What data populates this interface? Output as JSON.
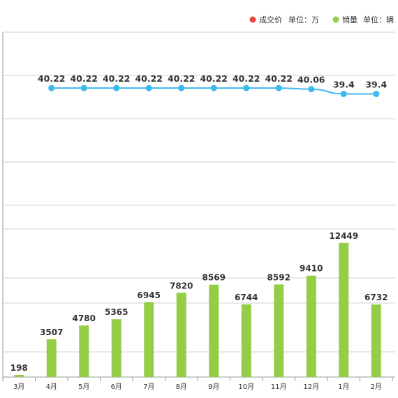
{
  "chart_data": {
    "type": "bar+line",
    "categories": [
      "3月",
      "4月",
      "5月",
      "6月",
      "7月",
      "8月",
      "9月",
      "10月",
      "11月",
      "12月",
      "1月",
      "2月"
    ],
    "series": [
      {
        "name": "成交价",
        "type": "line",
        "unit": "单位：万",
        "color": "#3db8ed",
        "values": [
          null,
          40.22,
          40.22,
          40.22,
          40.22,
          40.22,
          40.22,
          40.22,
          40.22,
          40.06,
          39.4,
          39.4
        ],
        "labels": [
          "",
          "40.22",
          "40.22",
          "40.22",
          "40.22",
          "40.22",
          "40.22",
          "40.22",
          "40.22",
          "40.06",
          "39.4",
          "39.4"
        ]
      },
      {
        "name": "销量",
        "type": "bar",
        "unit": "单位：辆",
        "color": "#95cd47",
        "values": [
          198,
          3507,
          4780,
          5365,
          6945,
          7820,
          8569,
          6744,
          8592,
          9410,
          12449,
          6732
        ]
      }
    ],
    "legend": {
      "placement": "top-right",
      "items": [
        {
          "dot_color": "#e8463f",
          "label": "成交价",
          "unit": "单位：万"
        },
        {
          "dot_color": "#95cd47",
          "label": "销量",
          "unit": "单位：辆"
        }
      ]
    },
    "bar_ylim": [
      0,
      32000
    ],
    "line_ylim": [
      0,
      48
    ],
    "grid": true
  }
}
